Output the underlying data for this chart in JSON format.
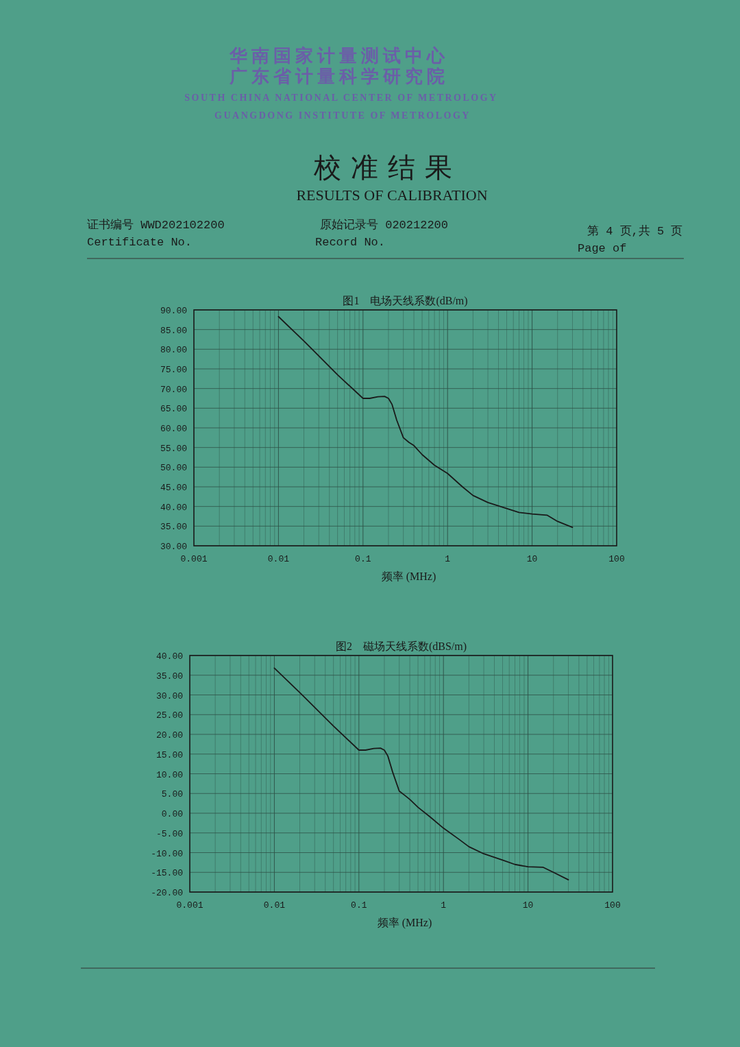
{
  "chart_data": [
    {
      "type": "line",
      "title": "图1　电场天线系数(dB/m)",
      "xlabel": "频率 (MHz)",
      "log": "x",
      "grid": true,
      "annotations": [
        "华南国家计量测试中心",
        "广东省计量科学研究院",
        "SOUTH CHINA NATIONAL CENTER OF METROLOGY",
        "GUANGDONG INSTITUTE OF METROLOGY",
        "校准结果",
        "RESULTS OF CALIBRATION",
        "证书编号 WWD202102200",
        "Certificate No.",
        "原始记录号 020212200",
        "Record No.",
        "第 4 页,共 5 页",
        "Page of"
      ],
      "xlim": [
        0.001,
        100
      ],
      "xticks": [
        0.001,
        0.01,
        0.1,
        1,
        10,
        100
      ],
      "ylim": [
        30,
        90
      ],
      "yticks": [
        {
          "value": 30,
          "label": "30.00"
        },
        {
          "value": 35,
          "label": "35.00"
        },
        {
          "value": 40,
          "label": "40.00"
        },
        {
          "value": 45,
          "label": "45.00"
        },
        {
          "value": 50,
          "label": "50.00"
        },
        {
          "value": 55,
          "label": "55.00"
        },
        {
          "value": 60,
          "label": "60.00"
        },
        {
          "value": 65,
          "label": "65.00"
        },
        {
          "value": 70,
          "label": "70.00"
        },
        {
          "value": 75,
          "label": "75.00"
        },
        {
          "value": 80,
          "label": "80.00"
        },
        {
          "value": 85,
          "label": "85.00"
        },
        {
          "value": 90,
          "label": "90.00"
        }
      ],
      "x": [
        0.01,
        0.02,
        0.05,
        0.1,
        0.12,
        0.15,
        0.18,
        0.2,
        0.22,
        0.25,
        0.3,
        0.35,
        0.4,
        0.5,
        0.7,
        1,
        1.5,
        2,
        3,
        5,
        7,
        10,
        15,
        20,
        30
      ],
      "series": [
        {
          "color": "#1a1a1a",
          "values": [
            88.3,
            82.1,
            73.5,
            67.5,
            67.5,
            67.9,
            68.0,
            67.5,
            66,
            62,
            57.5,
            56.3,
            55.5,
            53.2,
            50.5,
            48.4,
            45,
            42.8,
            41,
            39.5,
            38.5,
            38.1,
            37.8,
            36.2,
            34.7
          ]
        }
      ]
    },
    {
      "type": "line",
      "title": "图2　磁场天线系数(dBS/m)",
      "xlabel": "频率 (MHz)",
      "log": "x",
      "grid": true,
      "xlim": [
        0.001,
        100
      ],
      "xticks": [
        0.001,
        0.01,
        0.1,
        1,
        10,
        100
      ],
      "ylim": [
        -20,
        40
      ],
      "yticks": [
        {
          "value": -20,
          "label": "-20.00"
        },
        {
          "value": -15,
          "label": "-15.00"
        },
        {
          "value": -10,
          "label": "-10.00"
        },
        {
          "value": -5,
          "label": "-5.00"
        },
        {
          "value": 0,
          "label": "0.00"
        },
        {
          "value": 5,
          "label": "5.00"
        },
        {
          "value": 10,
          "label": "10.00"
        },
        {
          "value": 15,
          "label": "15.00"
        },
        {
          "value": 20,
          "label": "20.00"
        },
        {
          "value": 25,
          "label": "25.00"
        },
        {
          "value": 30,
          "label": "30.00"
        },
        {
          "value": 35,
          "label": "35.00"
        },
        {
          "value": 40,
          "label": "40.00"
        }
      ],
      "x": [
        0.01,
        0.02,
        0.05,
        0.1,
        0.12,
        0.15,
        0.18,
        0.2,
        0.22,
        0.25,
        0.3,
        0.35,
        0.4,
        0.5,
        0.7,
        1,
        1.5,
        2,
        3,
        5,
        7,
        10,
        15,
        20,
        30
      ],
      "series": [
        {
          "color": "#1a1a1a",
          "values": [
            36.8,
            30.6,
            22.1,
            16,
            16,
            16.4,
            16.5,
            16,
            14.5,
            10.5,
            5.6,
            4.5,
            3.5,
            1.5,
            -1,
            -3.8,
            -6.5,
            -8.5,
            -10.3,
            -11.9,
            -13,
            -13.6,
            -13.7,
            -15,
            -16.9
          ]
        }
      ]
    }
  ]
}
